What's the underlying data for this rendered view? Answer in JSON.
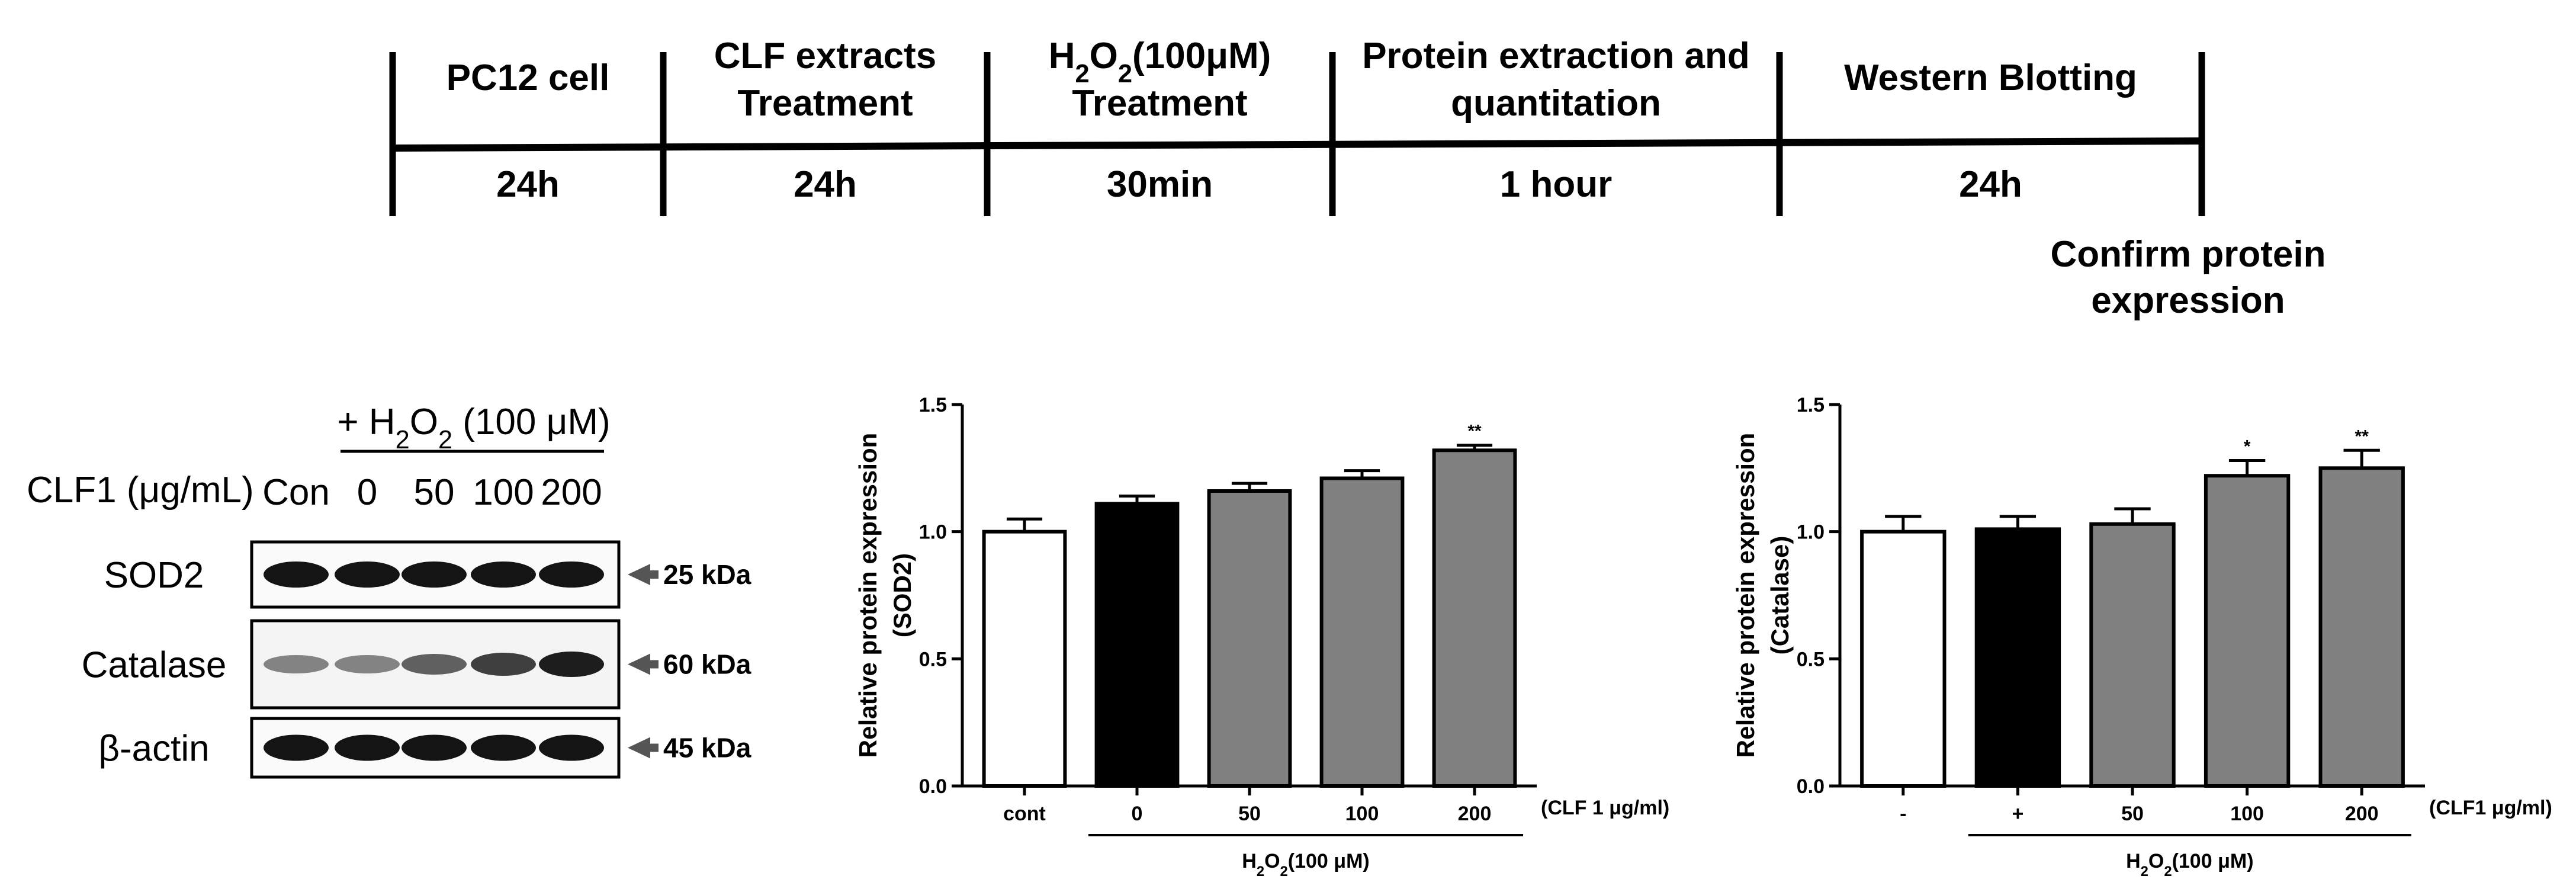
{
  "timeline": {
    "steps": [
      {
        "head": [
          "PC12 cell"
        ],
        "duration": "24h"
      },
      {
        "head": [
          "CLF extracts",
          "Treatment"
        ],
        "duration": "24h"
      },
      {
        "head": [
          "H2O2(100μM)",
          "Treatment"
        ],
        "duration": "30min"
      },
      {
        "head": [
          "Protein extraction and",
          "quantitation"
        ],
        "duration": "1 hour"
      },
      {
        "head": [
          "Western Blotting"
        ],
        "duration": "24h"
      }
    ],
    "end_note": [
      "Confirm protein",
      "expression"
    ]
  },
  "western_blot": {
    "treatment_header": "+ H2O2 (100 μM)",
    "row_label": "CLF1 (μg/mL)",
    "lanes": [
      "Con",
      "0",
      "50",
      "100",
      "200"
    ],
    "blots": [
      {
        "label": "SOD2",
        "kda": "25 kDa",
        "intensity": [
          1.0,
          1.0,
          1.0,
          1.0,
          1.0
        ]
      },
      {
        "label": "Catalase",
        "kda": "60 kDa",
        "intensity": [
          0.35,
          0.35,
          0.55,
          0.75,
          0.95
        ]
      },
      {
        "label": "β-actin",
        "kda": "45 kDa",
        "intensity": [
          1.0,
          1.0,
          1.0,
          1.0,
          1.0
        ]
      }
    ]
  },
  "chart_data": [
    {
      "type": "bar",
      "ylabel": [
        "Relative protein expression",
        "(SOD2)"
      ],
      "categories": [
        "cont",
        "0",
        "50",
        "100",
        "200"
      ],
      "values": [
        1.0,
        1.11,
        1.16,
        1.21,
        1.32
      ],
      "errors": [
        0.05,
        0.03,
        0.03,
        0.03,
        0.02
      ],
      "significance": [
        "",
        "",
        "",
        "",
        "**"
      ],
      "fills": [
        "#ffffff",
        "#000000",
        "#808080",
        "#808080",
        "#808080"
      ],
      "ylim": [
        0,
        1.5
      ],
      "yticks": [
        "0.0",
        "0.5",
        "1.0",
        "1.5"
      ],
      "unit_note": "(CLF 1 μg/ml)",
      "group_label": "H2O2(100 μM)",
      "group_span": [
        1,
        4
      ]
    },
    {
      "type": "bar",
      "ylabel": [
        "Relative protein expression",
        "(Catalase)"
      ],
      "categories": [
        "-",
        "+",
        "50",
        "100",
        "200"
      ],
      "values": [
        1.0,
        1.01,
        1.03,
        1.22,
        1.25
      ],
      "errors": [
        0.06,
        0.05,
        0.06,
        0.06,
        0.07
      ],
      "significance": [
        "",
        "",
        "",
        "*",
        "**"
      ],
      "fills": [
        "#ffffff",
        "#000000",
        "#808080",
        "#808080",
        "#808080"
      ],
      "ylim": [
        0,
        1.5
      ],
      "yticks": [
        "0.0",
        "0.5",
        "1.0",
        "1.5"
      ],
      "unit_note": "(CLF1 μg/ml)",
      "group_label": "H2O2(100 μM)",
      "group_span": [
        1,
        4
      ]
    }
  ]
}
